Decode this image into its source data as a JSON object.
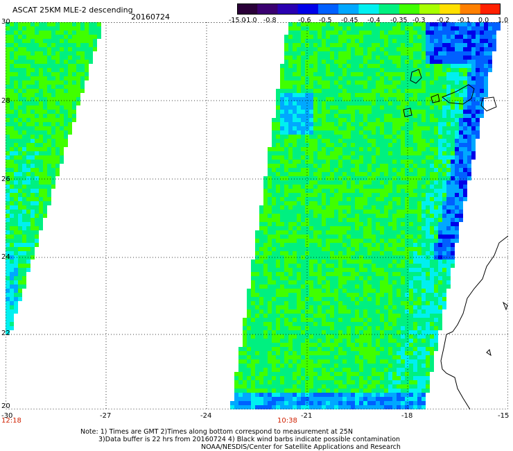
{
  "header": {
    "title": "ASCAT 25KM MLE-2 descending",
    "date": "20160724"
  },
  "colorbar": {
    "ticks": [
      "-15.0",
      "-1.0",
      "-0.8",
      "-0.6",
      "-0.5",
      "-0.45",
      "-0.4",
      "-0.35",
      "-0.3",
      "-0.2",
      "-0.1",
      "0.0",
      "1.0"
    ],
    "colors": [
      "#2a0038",
      "#3a0070",
      "#2a00b0",
      "#0000e8",
      "#0060ff",
      "#00a8ff",
      "#00f0f0",
      "#00f080",
      "#40ff00",
      "#a8ff00",
      "#ffe000",
      "#ff8000",
      "#ff2000"
    ]
  },
  "axes": {
    "lat_labels": [
      "30",
      "28",
      "26",
      "24",
      "22",
      "20"
    ],
    "lon_labels": [
      "-30",
      "-27",
      "-24",
      "-21",
      "-18",
      "-15"
    ]
  },
  "times": [
    "12:18",
    "10:38"
  ],
  "notes": [
    "Note: 1) Times are GMT 2)Times along bottom correspond to measurement at 25N",
    "3)Data buffer is 22 hrs from 20160724 4) Black wind barbs indicate possible contamination",
    "NOAA/NESDIS/Center for Satellite Applications and Research"
  ]
}
